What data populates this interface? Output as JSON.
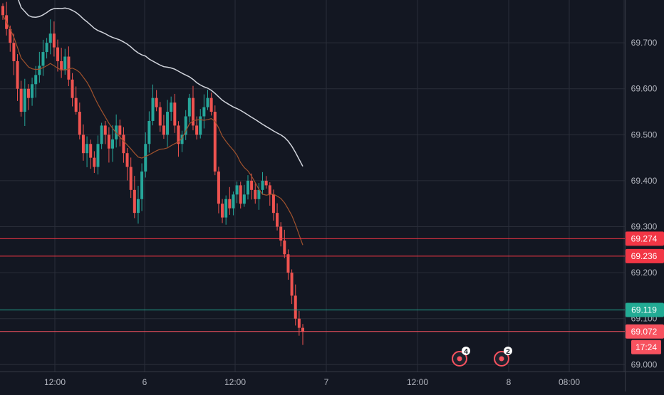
{
  "chart_data": {
    "type": "candlestick",
    "instrument_note": "intraday price chart with moving averages and horizontal levels",
    "ylim": [
      68.985,
      69.79
    ],
    "x_axis": {
      "tick_labels": [
        "12:00",
        "6",
        "12:00",
        "7",
        "12:00",
        "8",
        "08:00"
      ]
    },
    "y_axis": {
      "tick_labels": [
        "69.700",
        "69.600",
        "69.500",
        "69.400",
        "69.300",
        "69.200",
        "69.100",
        "69.000"
      ],
      "tick_values": [
        69.7,
        69.6,
        69.5,
        69.4,
        69.3,
        69.2,
        69.1,
        69.0
      ]
    },
    "candles_close": [
      69.76,
      69.73,
      69.7,
      69.66,
      69.6,
      69.55,
      69.6,
      69.58,
      69.61,
      69.63,
      69.65,
      69.68,
      69.7,
      69.72,
      69.69,
      69.66,
      69.64,
      69.67,
      69.62,
      69.58,
      69.55,
      69.5,
      69.46,
      69.48,
      69.45,
      69.43,
      69.48,
      69.52,
      69.5,
      69.47,
      69.49,
      69.52,
      69.5,
      69.46,
      69.43,
      69.38,
      69.33,
      69.36,
      69.42,
      69.48,
      69.53,
      69.58,
      69.56,
      69.52,
      69.5,
      69.55,
      69.57,
      69.52,
      69.48,
      69.5,
      69.54,
      69.58,
      69.52,
      69.5,
      69.54,
      69.56,
      69.58,
      69.55,
      69.42,
      69.35,
      69.32,
      69.36,
      69.34,
      69.37,
      69.39,
      69.35,
      69.37,
      69.4,
      69.38,
      69.36,
      69.38,
      69.4,
      69.39,
      69.37,
      69.33,
      69.3,
      69.27,
      69.24,
      69.2,
      69.15,
      69.1,
      69.08,
      69.072
    ],
    "indicators": [
      {
        "kind": "moving-average",
        "color": "#d1d4dc"
      },
      {
        "kind": "moving-average",
        "color": "#a0522d"
      }
    ],
    "levels": [
      {
        "value": 69.274,
        "label": "69.274",
        "color": "#f23645"
      },
      {
        "value": 69.236,
        "label": "69.236",
        "color": "#f23645"
      },
      {
        "value": 69.119,
        "label": "69.119",
        "color": "#22ab94"
      },
      {
        "value": 69.072,
        "label": "69.072",
        "color": "#f7525f",
        "sub_label": "17:24"
      }
    ],
    "markers": [
      {
        "badge": "4"
      },
      {
        "badge": "2"
      }
    ],
    "colors": {
      "up": "#26a69a",
      "down": "#ef5350",
      "background": "#131722",
      "grid": "#2a2e39",
      "text": "#b2b5be"
    }
  }
}
